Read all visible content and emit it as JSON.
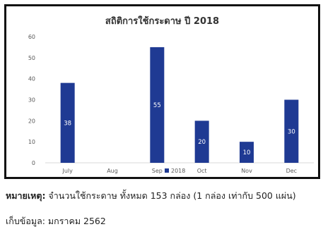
{
  "chart_data": {
    "type": "bar",
    "title": "สถิติการใช้กระดาษ ปี 2018",
    "categories": [
      "July",
      "Aug",
      "Sep",
      "Oct",
      "Nov",
      "Dec"
    ],
    "series": [
      {
        "name": "2018",
        "values": [
          38,
          0,
          55,
          20,
          10,
          30
        ]
      }
    ],
    "ylim": [
      0,
      60
    ],
    "yticks": [
      0,
      10,
      20,
      30,
      40,
      50,
      60
    ],
    "data_labels": [
      "38",
      "",
      "55",
      "20",
      "10",
      "30"
    ],
    "grid": false,
    "legend": "bottom",
    "bar_color": "#1f3a93",
    "label_color": "#ffffff"
  },
  "note": {
    "label": "หมายเหตุ:",
    "text": " จำนวนใช้กระดาษ ทั้งหมด 153 กล่อง (1 กล่อง เท่ากับ 500 แผ่น)"
  },
  "collected": "เก็บข้อมูล: มกราคม 2562"
}
